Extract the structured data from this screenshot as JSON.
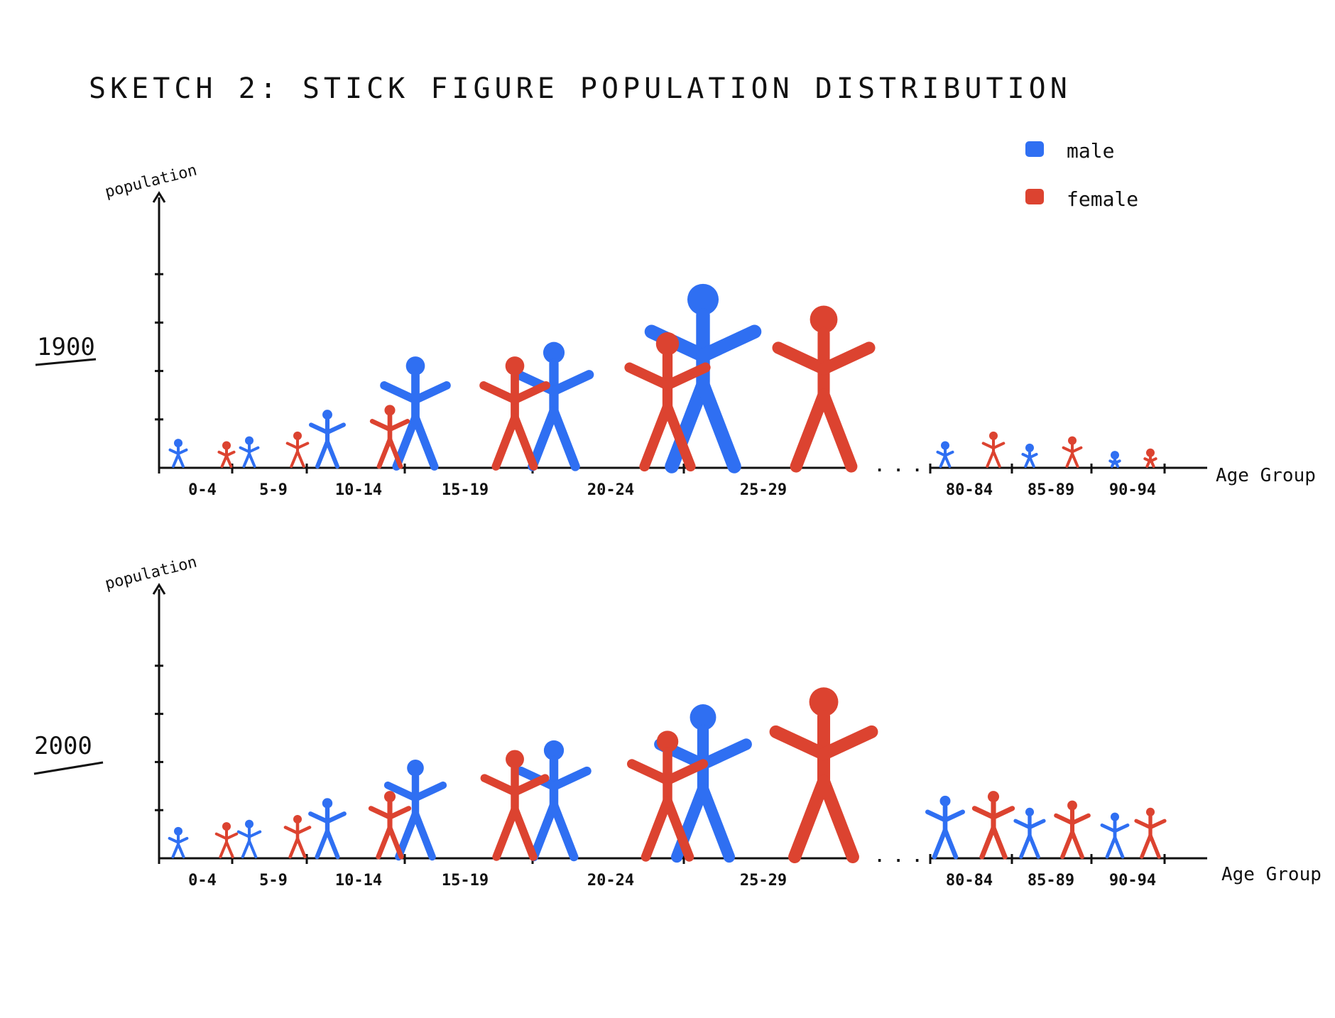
{
  "title": "SKETCH 2: STICK FIGURE POPULATION DISTRIBUTION",
  "legend": [
    {
      "label": "male",
      "color": "#2f6ff2"
    },
    {
      "label": "female",
      "color": "#dc4330"
    }
  ],
  "ellipsis": ". . .",
  "chart_data": [
    {
      "type": "bar",
      "year_label": "1900",
      "ylabel": "population",
      "xlabel": "Age Group",
      "categories": [
        "0-4",
        "5-9",
        "10-14",
        "15-19",
        "20-24",
        "25-29",
        "80-84",
        "85-89",
        "90-94"
      ],
      "category_labels": [
        "0-4",
        "5-9",
        "10-14",
        "15-19",
        "20-24",
        "25-29",
        "80-84",
        "85-89",
        "90-94"
      ],
      "series": [
        {
          "name": "male",
          "values": [
            1.2,
            1.3,
            2.4,
            4.6,
            5.2,
            7.6,
            1.1,
            1.0,
            0.7
          ]
        },
        {
          "name": "female",
          "values": [
            1.1,
            1.5,
            2.6,
            4.6,
            5.6,
            6.7,
            1.5,
            1.3,
            0.8
          ]
        }
      ],
      "ylim": [
        0,
        10
      ]
    },
    {
      "type": "bar",
      "year_label": "2000",
      "ylabel": "population",
      "xlabel": "Age Group",
      "categories": [
        "0-4",
        "5-9",
        "10-14",
        "15-19",
        "20-24",
        "25-29",
        "80-84",
        "85-89",
        "90-94"
      ],
      "category_labels": [
        "0-4",
        "5-9",
        "10-14",
        "15-19",
        "20-24",
        "25-29",
        "80-84",
        "85-89",
        "90-94"
      ],
      "series": [
        {
          "name": "male",
          "values": [
            1.3,
            1.6,
            2.5,
            4.1,
            4.9,
            6.4,
            2.6,
            2.1,
            1.9
          ]
        },
        {
          "name": "female",
          "values": [
            1.5,
            1.8,
            2.8,
            4.5,
            5.3,
            7.1,
            2.8,
            2.4,
            2.1
          ]
        }
      ],
      "ylim": [
        0,
        10
      ]
    }
  ]
}
